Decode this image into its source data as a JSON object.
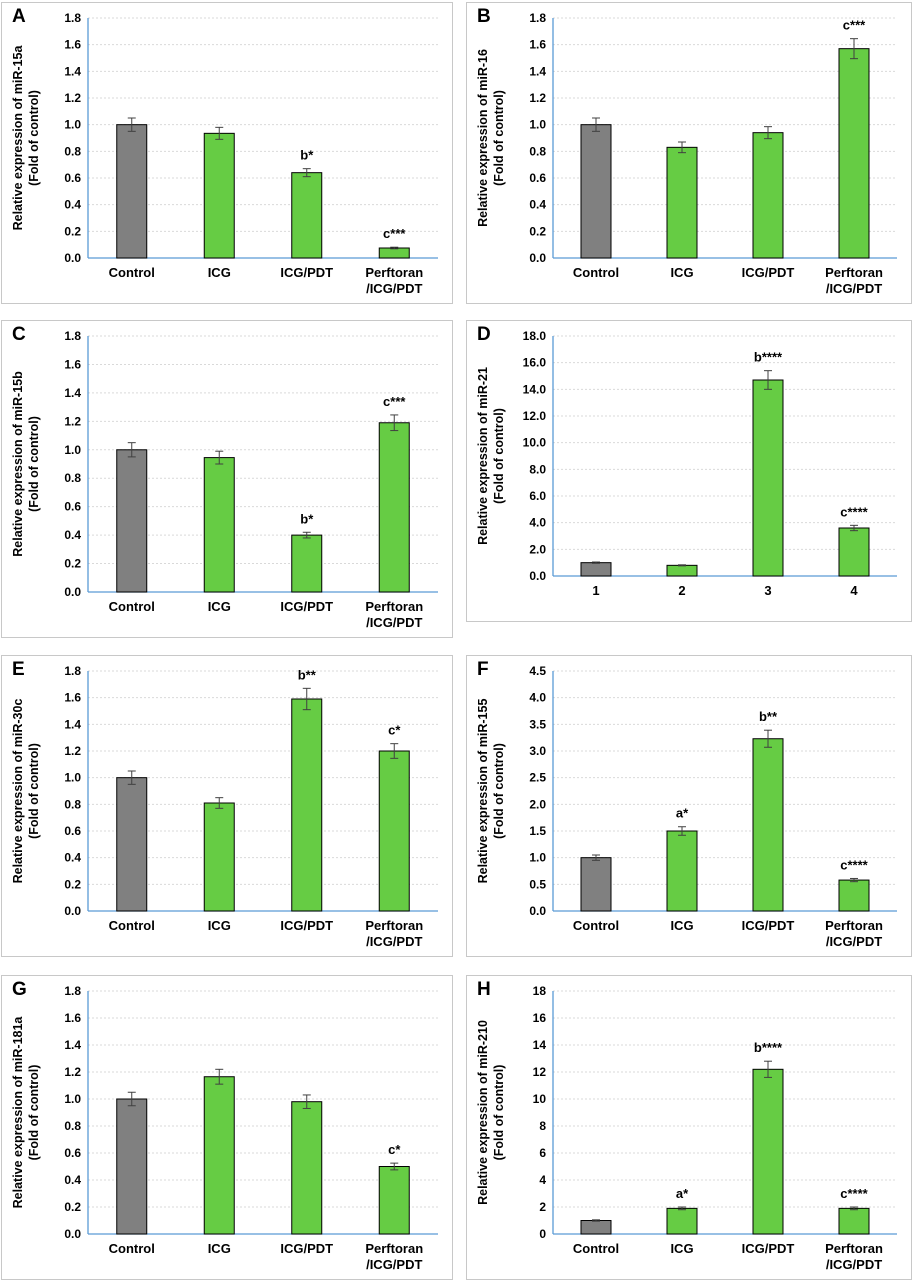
{
  "chart_data": [
    {
      "type": "bar",
      "panel": "A",
      "ylabel": "Relative expression of miR-15a",
      "ylabel2": "(Fold of control)",
      "ylim": [
        0,
        1.8
      ],
      "ystep": 0.2,
      "decimals": 1,
      "categories": [
        [
          "Control"
        ],
        [
          "ICG"
        ],
        [
          "ICG/PDT"
        ],
        [
          "Perftoran",
          "/ICG/PDT"
        ]
      ],
      "values": [
        1.0,
        0.935,
        0.64,
        0.075
      ],
      "errors": [
        0.05,
        0.045,
        0.03,
        0.006
      ],
      "annotations": [
        "",
        "",
        "b*",
        "c***"
      ],
      "colors": [
        "#808080",
        "#66cc44",
        "#66cc44",
        "#66cc44"
      ]
    },
    {
      "type": "bar",
      "panel": "B",
      "ylabel": "Relative expression of miR-16",
      "ylabel2": "(Fold of control)",
      "ylim": [
        0,
        1.8
      ],
      "ystep": 0.2,
      "decimals": 1,
      "categories": [
        [
          "Control"
        ],
        [
          "ICG"
        ],
        [
          "ICG/PDT"
        ],
        [
          "Perftoran",
          "/ICG/PDT"
        ]
      ],
      "values": [
        1.0,
        0.83,
        0.94,
        1.57
      ],
      "errors": [
        0.05,
        0.04,
        0.045,
        0.075
      ],
      "annotations": [
        "",
        "",
        "",
        "c***"
      ],
      "colors": [
        "#808080",
        "#66cc44",
        "#66cc44",
        "#66cc44"
      ]
    },
    {
      "type": "bar",
      "panel": "C",
      "ylabel": "Relative expression of miR-15b",
      "ylabel2": "(Fold of control)",
      "ylim": [
        0,
        1.8
      ],
      "ystep": 0.2,
      "decimals": 1,
      "categories": [
        [
          "Control"
        ],
        [
          "ICG"
        ],
        [
          "ICG/PDT"
        ],
        [
          "Perftoran",
          "/ICG/PDT"
        ]
      ],
      "values": [
        1.0,
        0.945,
        0.4,
        1.19
      ],
      "errors": [
        0.05,
        0.045,
        0.02,
        0.055
      ],
      "annotations": [
        "",
        "",
        "b*",
        "c***"
      ],
      "colors": [
        "#808080",
        "#66cc44",
        "#66cc44",
        "#66cc44"
      ]
    },
    {
      "type": "bar",
      "panel": "D",
      "ylabel": "Relative expression of miR-21",
      "ylabel2": "(Fold of control)",
      "ylim": [
        0,
        18
      ],
      "ystep": 2,
      "decimals": 1,
      "categories": [
        [
          "1"
        ],
        [
          "2"
        ],
        [
          "3"
        ],
        [
          "4"
        ]
      ],
      "values": [
        1.0,
        0.8,
        14.7,
        3.6
      ],
      "errors": [
        0.05,
        0.04,
        0.7,
        0.2
      ],
      "annotations": [
        "",
        "",
        "b****",
        "c****"
      ],
      "colors": [
        "#808080",
        "#66cc44",
        "#66cc44",
        "#66cc44"
      ]
    },
    {
      "type": "bar",
      "panel": "E",
      "ylabel": "Relative expression of miR-30c",
      "ylabel2": "(Fold of control)",
      "ylim": [
        0,
        1.8
      ],
      "ystep": 0.2,
      "decimals": 1,
      "categories": [
        [
          "Control"
        ],
        [
          "ICG"
        ],
        [
          "ICG/PDT"
        ],
        [
          "Perftoran",
          "/ICG/PDT"
        ]
      ],
      "values": [
        1.0,
        0.81,
        1.59,
        1.2
      ],
      "errors": [
        0.05,
        0.04,
        0.08,
        0.055
      ],
      "annotations": [
        "",
        "",
        "b**",
        "c*"
      ],
      "colors": [
        "#808080",
        "#66cc44",
        "#66cc44",
        "#66cc44"
      ]
    },
    {
      "type": "bar",
      "panel": "F",
      "ylabel": "Relative expression of miR-155",
      "ylabel2": "(Fold of control)",
      "ylim": [
        0,
        4.5
      ],
      "ystep": 0.5,
      "decimals": 1,
      "categories": [
        [
          "Control"
        ],
        [
          "ICG"
        ],
        [
          "ICG/PDT"
        ],
        [
          "Perftoran",
          "/ICG/PDT"
        ]
      ],
      "values": [
        1.0,
        1.5,
        3.23,
        0.58
      ],
      "errors": [
        0.05,
        0.08,
        0.16,
        0.03
      ],
      "annotations": [
        "",
        "a*",
        "b**",
        "c****"
      ],
      "colors": [
        "#808080",
        "#66cc44",
        "#66cc44",
        "#66cc44"
      ]
    },
    {
      "type": "bar",
      "panel": "G",
      "ylabel": "Relative expression of miR-181a",
      "ylabel2": "(Fold of control)",
      "ylim": [
        0,
        1.8
      ],
      "ystep": 0.2,
      "decimals": 1,
      "categories": [
        [
          "Control"
        ],
        [
          "ICG"
        ],
        [
          "ICG/PDT"
        ],
        [
          "Perftoran",
          "/ICG/PDT"
        ]
      ],
      "values": [
        1.0,
        1.165,
        0.98,
        0.5
      ],
      "errors": [
        0.05,
        0.055,
        0.05,
        0.025
      ],
      "annotations": [
        "",
        "",
        "",
        "c*"
      ],
      "colors": [
        "#808080",
        "#66cc44",
        "#66cc44",
        "#66cc44"
      ]
    },
    {
      "type": "bar",
      "panel": "H",
      "ylabel": "Relative expression of miR-210",
      "ylabel2": "(Fold of control)",
      "ylim": [
        0,
        18
      ],
      "ystep": 2,
      "decimals": 0,
      "categories": [
        [
          "Control"
        ],
        [
          "ICG"
        ],
        [
          "ICG/PDT"
        ],
        [
          "Perftoran",
          "/ICG/PDT"
        ]
      ],
      "values": [
        1.0,
        1.9,
        12.2,
        1.9
      ],
      "errors": [
        0.05,
        0.1,
        0.6,
        0.1
      ],
      "annotations": [
        "",
        "a*",
        "b****",
        "c****"
      ],
      "colors": [
        "#808080",
        "#66cc44",
        "#66cc44",
        "#66cc44"
      ]
    }
  ],
  "style": {
    "axis_color": "#5b9bd5",
    "grid_color": "#d9d9d9",
    "bar_stroke": "#000000",
    "error_color": "#404040"
  }
}
